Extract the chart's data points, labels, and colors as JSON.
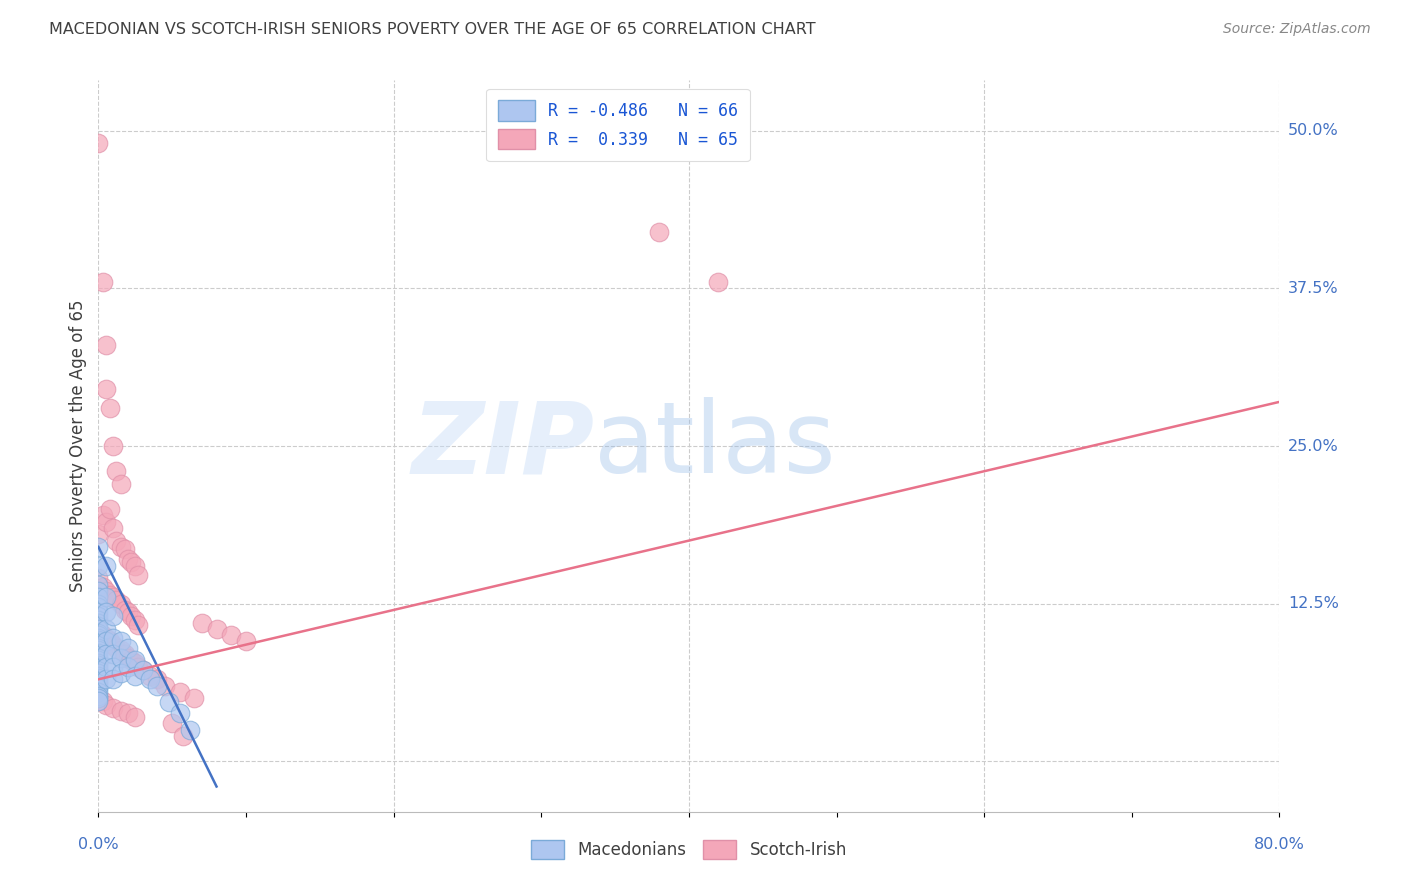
{
  "title": "MACEDONIAN VS SCOTCH-IRISH SENIORS POVERTY OVER THE AGE OF 65 CORRELATION CHART",
  "source": "Source: ZipAtlas.com",
  "ylabel": "Seniors Poverty Over the Age of 65",
  "watermark_zip": "ZIP",
  "watermark_atlas": "atlas",
  "legend": {
    "macedonian": {
      "R": -0.486,
      "N": 66,
      "color": "#aec6f0",
      "edge": "#7baad8",
      "label": "Macedonians"
    },
    "scotch_irish": {
      "R": 0.339,
      "N": 65,
      "color": "#f4a7b9",
      "edge": "#e090a8",
      "label": "Scotch-Irish"
    }
  },
  "macedonian_scatter": [
    [
      0.0,
      0.17
    ],
    [
      0.0,
      0.155
    ],
    [
      0.0,
      0.14
    ],
    [
      0.0,
      0.135
    ],
    [
      0.0,
      0.13
    ],
    [
      0.0,
      0.125
    ],
    [
      0.0,
      0.122
    ],
    [
      0.0,
      0.118
    ],
    [
      0.0,
      0.115
    ],
    [
      0.0,
      0.112
    ],
    [
      0.0,
      0.11
    ],
    [
      0.0,
      0.107
    ],
    [
      0.0,
      0.105
    ],
    [
      0.0,
      0.102
    ],
    [
      0.0,
      0.1
    ],
    [
      0.0,
      0.098
    ],
    [
      0.0,
      0.096
    ],
    [
      0.0,
      0.094
    ],
    [
      0.0,
      0.092
    ],
    [
      0.0,
      0.09
    ],
    [
      0.0,
      0.088
    ],
    [
      0.0,
      0.086
    ],
    [
      0.0,
      0.084
    ],
    [
      0.0,
      0.082
    ],
    [
      0.0,
      0.08
    ],
    [
      0.0,
      0.078
    ],
    [
      0.0,
      0.076
    ],
    [
      0.0,
      0.074
    ],
    [
      0.0,
      0.072
    ],
    [
      0.0,
      0.07
    ],
    [
      0.0,
      0.068
    ],
    [
      0.0,
      0.066
    ],
    [
      0.0,
      0.064
    ],
    [
      0.0,
      0.062
    ],
    [
      0.0,
      0.06
    ],
    [
      0.0,
      0.058
    ],
    [
      0.0,
      0.055
    ],
    [
      0.0,
      0.052
    ],
    [
      0.0,
      0.05
    ],
    [
      0.0,
      0.048
    ],
    [
      0.005,
      0.155
    ],
    [
      0.005,
      0.13
    ],
    [
      0.005,
      0.118
    ],
    [
      0.005,
      0.105
    ],
    [
      0.005,
      0.095
    ],
    [
      0.005,
      0.085
    ],
    [
      0.005,
      0.075
    ],
    [
      0.005,
      0.065
    ],
    [
      0.01,
      0.115
    ],
    [
      0.01,
      0.098
    ],
    [
      0.01,
      0.085
    ],
    [
      0.01,
      0.075
    ],
    [
      0.01,
      0.065
    ],
    [
      0.015,
      0.095
    ],
    [
      0.015,
      0.082
    ],
    [
      0.015,
      0.07
    ],
    [
      0.02,
      0.09
    ],
    [
      0.02,
      0.075
    ],
    [
      0.025,
      0.08
    ],
    [
      0.025,
      0.068
    ],
    [
      0.03,
      0.072
    ],
    [
      0.035,
      0.065
    ],
    [
      0.04,
      0.06
    ],
    [
      0.048,
      0.047
    ],
    [
      0.055,
      0.038
    ],
    [
      0.062,
      0.025
    ]
  ],
  "scotch_irish_scatter": [
    [
      0.0,
      0.49
    ],
    [
      0.003,
      0.38
    ],
    [
      0.005,
      0.33
    ],
    [
      0.005,
      0.295
    ],
    [
      0.008,
      0.28
    ],
    [
      0.01,
      0.25
    ],
    [
      0.012,
      0.23
    ],
    [
      0.015,
      0.22
    ],
    [
      0.0,
      0.18
    ],
    [
      0.003,
      0.195
    ],
    [
      0.005,
      0.19
    ],
    [
      0.008,
      0.2
    ],
    [
      0.01,
      0.185
    ],
    [
      0.012,
      0.175
    ],
    [
      0.015,
      0.17
    ],
    [
      0.018,
      0.168
    ],
    [
      0.02,
      0.16
    ],
    [
      0.022,
      0.158
    ],
    [
      0.025,
      0.155
    ],
    [
      0.027,
      0.148
    ],
    [
      0.0,
      0.145
    ],
    [
      0.003,
      0.138
    ],
    [
      0.005,
      0.135
    ],
    [
      0.008,
      0.132
    ],
    [
      0.01,
      0.13
    ],
    [
      0.012,
      0.128
    ],
    [
      0.015,
      0.125
    ],
    [
      0.018,
      0.12
    ],
    [
      0.02,
      0.118
    ],
    [
      0.022,
      0.115
    ],
    [
      0.025,
      0.112
    ],
    [
      0.027,
      0.108
    ],
    [
      0.0,
      0.105
    ],
    [
      0.003,
      0.1
    ],
    [
      0.005,
      0.098
    ],
    [
      0.008,
      0.095
    ],
    [
      0.01,
      0.092
    ],
    [
      0.012,
      0.09
    ],
    [
      0.015,
      0.088
    ],
    [
      0.018,
      0.085
    ],
    [
      0.02,
      0.082
    ],
    [
      0.022,
      0.08
    ],
    [
      0.025,
      0.078
    ],
    [
      0.027,
      0.075
    ],
    [
      0.03,
      0.072
    ],
    [
      0.035,
      0.068
    ],
    [
      0.04,
      0.065
    ],
    [
      0.045,
      0.06
    ],
    [
      0.055,
      0.055
    ],
    [
      0.065,
      0.05
    ],
    [
      0.0,
      0.05
    ],
    [
      0.003,
      0.048
    ],
    [
      0.005,
      0.045
    ],
    [
      0.01,
      0.042
    ],
    [
      0.015,
      0.04
    ],
    [
      0.02,
      0.038
    ],
    [
      0.025,
      0.035
    ],
    [
      0.05,
      0.03
    ],
    [
      0.057,
      0.02
    ],
    [
      0.07,
      0.11
    ],
    [
      0.08,
      0.105
    ],
    [
      0.09,
      0.1
    ],
    [
      0.1,
      0.095
    ],
    [
      0.38,
      0.42
    ],
    [
      0.42,
      0.38
    ]
  ],
  "macedonian_line": {
    "x0": 0.0,
    "y0": 0.17,
    "x1": 0.08,
    "y1": -0.02,
    "color": "#4472c4"
  },
  "scotch_irish_line": {
    "x0": 0.0,
    "y0": 0.065,
    "x1": 0.8,
    "y1": 0.285,
    "color": "#e8728a"
  },
  "bg_color": "#ffffff",
  "grid_color": "#cccccc",
  "axis_color": "#4472c4",
  "title_color": "#404040",
  "xmin": 0.0,
  "xmax": 0.8,
  "ymin": -0.04,
  "ymax": 0.54,
  "ytick_vals": [
    0.0,
    0.125,
    0.25,
    0.375,
    0.5
  ],
  "ytick_labels": [
    "",
    "12.5%",
    "25.0%",
    "37.5%",
    "50.0%"
  ],
  "xtick_vals": [
    0.0,
    0.2,
    0.4,
    0.6,
    0.8
  ],
  "xtick_labels": [
    "0.0%",
    "",
    "",
    "",
    "80.0%"
  ]
}
